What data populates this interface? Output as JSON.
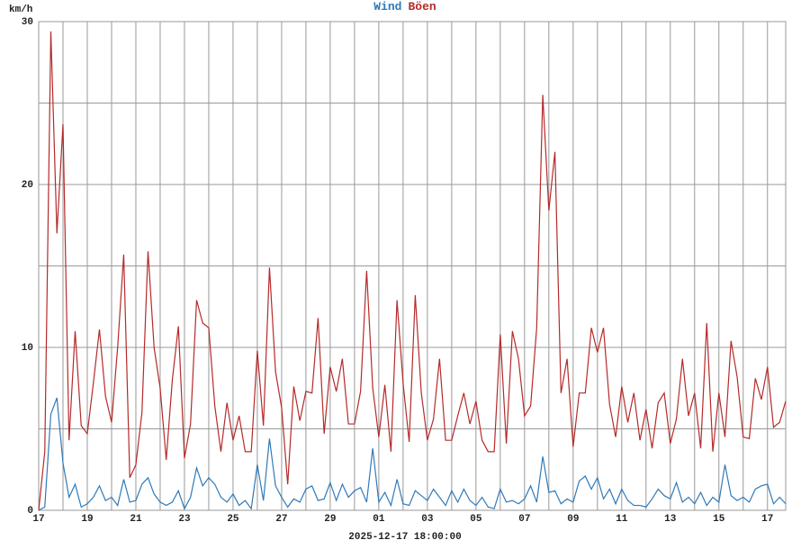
{
  "chart_data": {
    "type": "line",
    "ylabel": "km/h",
    "footer": "2025-12-17 18:00:00",
    "xlim": [
      0,
      30.75
    ],
    "ylim": [
      0,
      30
    ],
    "yticks": [
      0,
      10,
      20,
      30
    ],
    "yminor": [
      5,
      15,
      25
    ],
    "xticks": [
      {
        "value": 0,
        "label": "17"
      },
      {
        "value": 2,
        "label": "19"
      },
      {
        "value": 4,
        "label": "21"
      },
      {
        "value": 6,
        "label": "23"
      },
      {
        "value": 8,
        "label": "25"
      },
      {
        "value": 10,
        "label": "27"
      },
      {
        "value": 12,
        "label": "29"
      },
      {
        "value": 14,
        "label": "01"
      },
      {
        "value": 16,
        "label": "03"
      },
      {
        "value": 18,
        "label": "05"
      },
      {
        "value": 20,
        "label": "07"
      },
      {
        "value": 22,
        "label": "09"
      },
      {
        "value": 24,
        "label": "11"
      },
      {
        "value": 26,
        "label": "13"
      },
      {
        "value": 28,
        "label": "15"
      },
      {
        "value": 30,
        "label": "17"
      }
    ],
    "xminor": [
      1,
      3,
      5,
      7,
      9,
      11,
      13,
      15,
      17,
      19,
      21,
      23,
      25,
      27,
      29
    ],
    "grid": true,
    "x": [
      0,
      0.25,
      0.5,
      0.75,
      1,
      1.25,
      1.5,
      1.75,
      2,
      2.25,
      2.5,
      2.75,
      3,
      3.25,
      3.5,
      3.75,
      4,
      4.25,
      4.5,
      4.75,
      5,
      5.25,
      5.5,
      5.75,
      6,
      6.25,
      6.5,
      6.75,
      7,
      7.25,
      7.5,
      7.75,
      8,
      8.25,
      8.5,
      8.75,
      9,
      9.25,
      9.5,
      9.75,
      10,
      10.25,
      10.5,
      10.75,
      11,
      11.25,
      11.5,
      11.75,
      12,
      12.25,
      12.5,
      12.75,
      13,
      13.25,
      13.5,
      13.75,
      14,
      14.25,
      14.5,
      14.75,
      15,
      15.25,
      15.5,
      15.75,
      16,
      16.25,
      16.5,
      16.75,
      17,
      17.25,
      17.5,
      17.75,
      18,
      18.25,
      18.5,
      18.75,
      19,
      19.25,
      19.5,
      19.75,
      20,
      20.25,
      20.5,
      20.75,
      21,
      21.25,
      21.5,
      21.75,
      22,
      22.25,
      22.5,
      22.75,
      23,
      23.25,
      23.5,
      23.75,
      24,
      24.25,
      24.5,
      24.75,
      25,
      25.25,
      25.5,
      25.75,
      26,
      26.25,
      26.5,
      26.75,
      27,
      27.25,
      27.5,
      27.75,
      28,
      28.25,
      28.5,
      28.75,
      29,
      29.25,
      29.5,
      29.75,
      30,
      30.25,
      30.5,
      30.75
    ],
    "series": [
      {
        "name": "Wind",
        "color": "#2f7ab9",
        "values": [
          0,
          0.2,
          5.9,
          6.9,
          2.9,
          0.8,
          1.6,
          0.2,
          0.4,
          0.8,
          1.5,
          0.6,
          0.8,
          0.3,
          1.9,
          0.5,
          0.6,
          1.6,
          2.0,
          1.0,
          0.5,
          0.3,
          0.5,
          1.2,
          0.1,
          0.8,
          2.6,
          1.5,
          2.0,
          1.6,
          0.8,
          0.5,
          1.0,
          0.3,
          0.6,
          0.1,
          2.8,
          0.6,
          4.4,
          1.5,
          0.8,
          0.2,
          0.7,
          0.5,
          1.3,
          1.5,
          0.6,
          0.7,
          1.7,
          0.6,
          1.6,
          0.8,
          1.2,
          1.4,
          0.5,
          3.8,
          0.5,
          1.1,
          0.3,
          1.9,
          0.4,
          0.3,
          1.2,
          0.9,
          0.6,
          1.3,
          0.8,
          0.3,
          1.2,
          0.5,
          1.3,
          0.6,
          0.3,
          0.8,
          0.2,
          0.1,
          1.3,
          0.5,
          0.6,
          0.4,
          0.7,
          1.5,
          0.5,
          3.3,
          1.1,
          1.2,
          0.4,
          0.7,
          0.5,
          1.8,
          2.1,
          1.3,
          2.0,
          0.7,
          1.3,
          0.4,
          1.3,
          0.6,
          0.3,
          0.3,
          0.2,
          0.7,
          1.3,
          0.9,
          0.7,
          1.7,
          0.5,
          0.8,
          0.4,
          1.1,
          0.3,
          0.8,
          0.5,
          2.8,
          0.9,
          0.6,
          0.8,
          0.5,
          1.3,
          1.5,
          1.6,
          0.4,
          0.8,
          0.4
        ]
      },
      {
        "name": "Böen",
        "color": "#b52a2a",
        "values": [
          0,
          3.6,
          29.4,
          17,
          23.7,
          4.3,
          11,
          5.2,
          4.7,
          7.8,
          11.1,
          7.0,
          5.4,
          10,
          15.7,
          2.0,
          2.8,
          6,
          15.9,
          10,
          7.5,
          3.1,
          8,
          11.3,
          3.2,
          5.3,
          12.9,
          11.5,
          11.2,
          6.4,
          3.6,
          6.6,
          4.3,
          5.8,
          3.6,
          3.6,
          9.8,
          5.2,
          14.9,
          8.5,
          6.3,
          1.6,
          7.6,
          5.5,
          7.3,
          7.2,
          11.8,
          4.7,
          8.8,
          7.3,
          9.3,
          5.3,
          5.3,
          7.3,
          14.7,
          7.5,
          4.5,
          7.7,
          3.6,
          12.9,
          7.8,
          4.2,
          13.2,
          7.2,
          4.3,
          5.6,
          9.3,
          4.3,
          4.3,
          5.8,
          7.2,
          5.3,
          6.7,
          4.3,
          3.6,
          3.6,
          10.8,
          4.1,
          11,
          9.3,
          5.8,
          6.4,
          11.2,
          25.5,
          18.4,
          22,
          7.2,
          9.3,
          3.9,
          7.2,
          7.2,
          11.2,
          9.7,
          11.2,
          6.5,
          4.5,
          7.6,
          5.4,
          7.2,
          4.3,
          6.2,
          3.8,
          6.6,
          7.2,
          4.1,
          5.6,
          9.3,
          5.8,
          7.2,
          3.8,
          11.5,
          3.6,
          7.2,
          4.5,
          10.4,
          8.2,
          4.5,
          4.4,
          8.1,
          6.8,
          8.8,
          5.1,
          5.4,
          6.7
        ]
      }
    ]
  }
}
